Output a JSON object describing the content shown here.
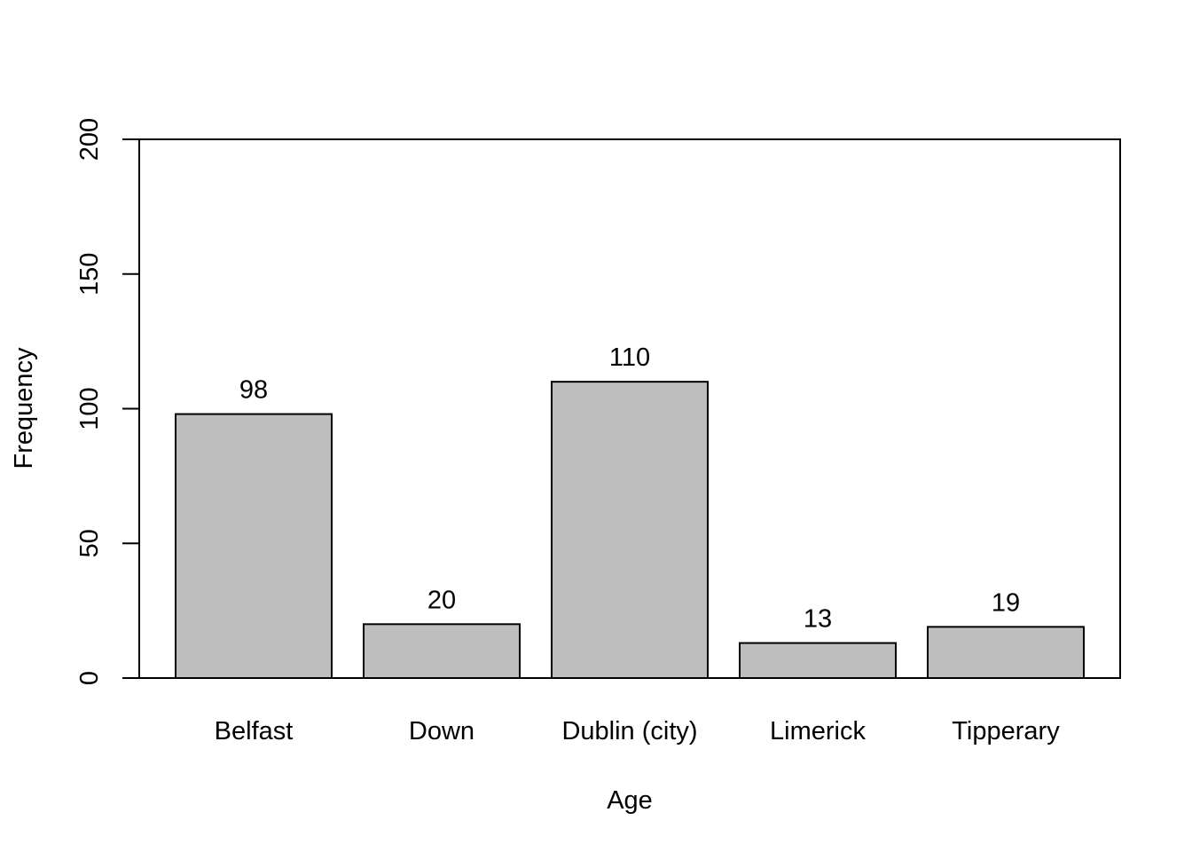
{
  "chart_data": {
    "type": "bar",
    "categories": [
      "Belfast",
      "Down",
      "Dublin (city)",
      "Limerick",
      "Tipperary"
    ],
    "values": [
      98,
      20,
      110,
      13,
      19
    ],
    "data_labels": [
      "98",
      "20",
      "110",
      "13",
      "19"
    ],
    "xlabel": "Age",
    "ylabel": "Frequency",
    "ylim": [
      0,
      200
    ],
    "yticks": [
      0,
      50,
      100,
      150,
      200
    ],
    "ytick_labels": [
      "0",
      "50",
      "100",
      "150",
      "200"
    ],
    "grid": false,
    "bar_color": "#bebebe",
    "bar_edge_color": "#000000"
  }
}
